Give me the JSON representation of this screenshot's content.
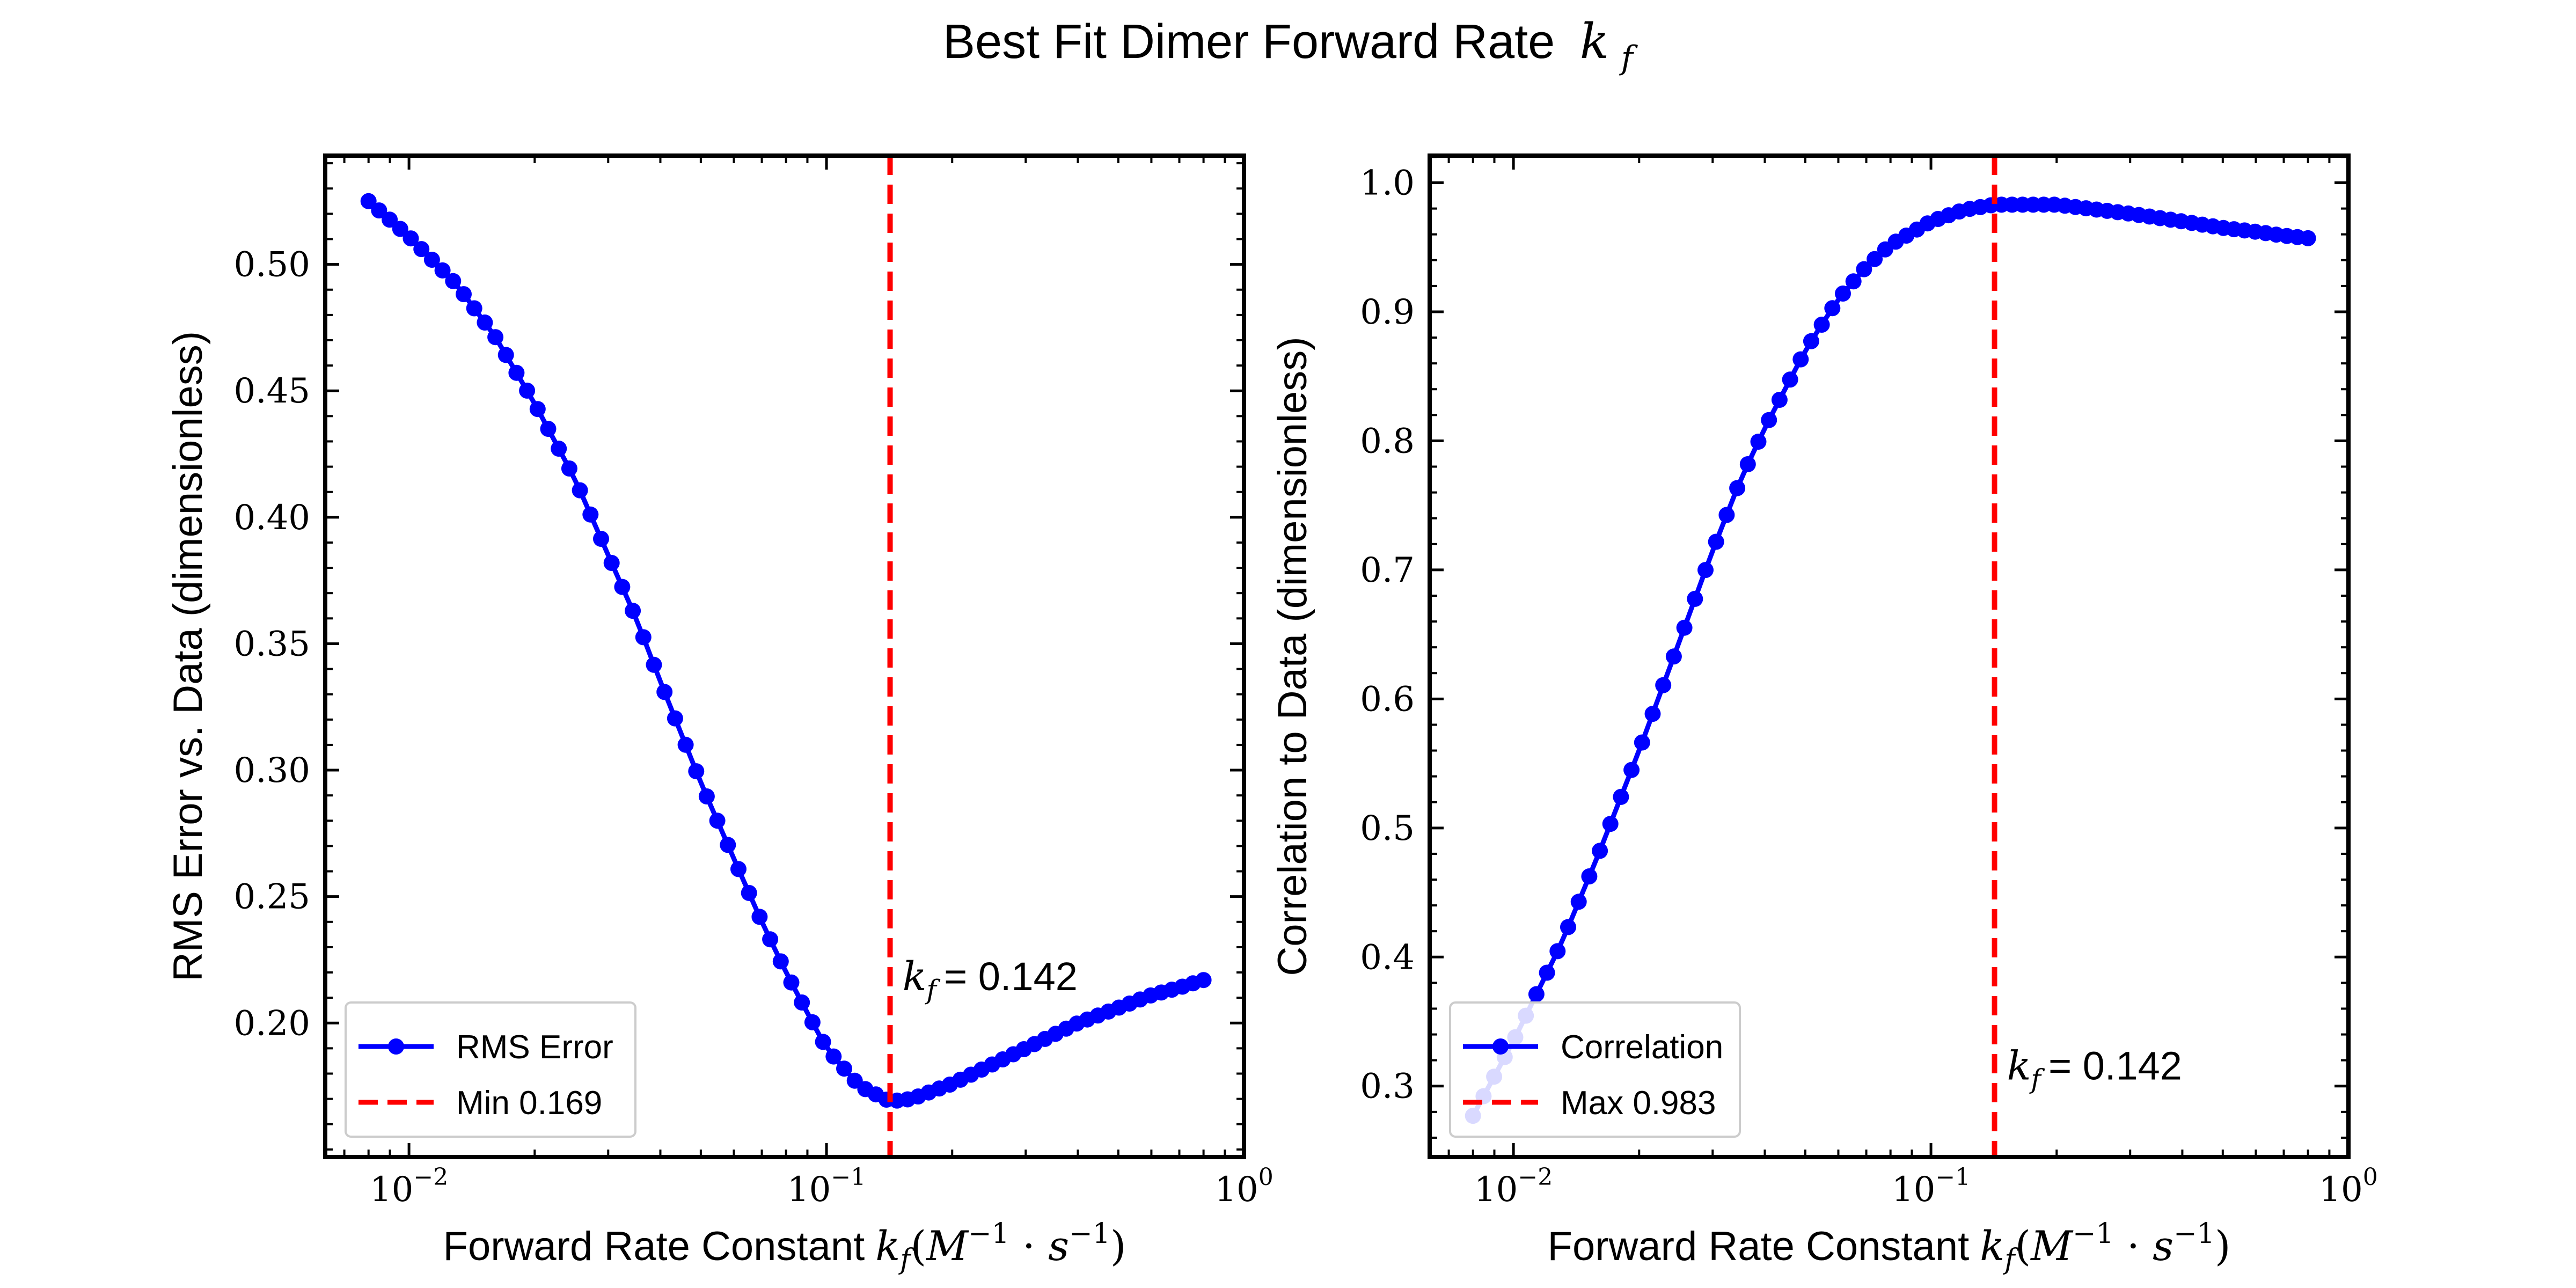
{
  "title": {
    "text": "Best Fit Dimer Forward Rate",
    "symbol": "k",
    "subscript": "f"
  },
  "chart_data": [
    {
      "type": "line",
      "xscale": "log",
      "xlim": [
        0.0063,
        1.0
      ],
      "ylim": [
        0.147,
        0.543
      ],
      "xlabel": {
        "text": "Forward Rate Constant",
        "math": "k_f(M^{-1} · s^{-1})"
      },
      "ylabel": "RMS Error vs. Data (dimensionless)",
      "xticks": [
        {
          "value": 0.01,
          "base": "10",
          "exp": "−2"
        },
        {
          "value": 0.1,
          "base": "10",
          "exp": "−1"
        },
        {
          "value": 1.0,
          "base": "10",
          "exp": "0"
        }
      ],
      "yticks": [
        {
          "value": 0.2,
          "label": "0.20"
        },
        {
          "value": 0.25,
          "label": "0.25"
        },
        {
          "value": 0.3,
          "label": "0.30"
        },
        {
          "value": 0.35,
          "label": "0.35"
        },
        {
          "value": 0.4,
          "label": "0.40"
        },
        {
          "value": 0.45,
          "label": "0.45"
        },
        {
          "value": 0.5,
          "label": "0.50"
        }
      ],
      "series": [
        {
          "name": "RMS Error",
          "color": "#0000ff",
          "x_range": [
            0.008,
            0.8
          ],
          "points": 80,
          "key_points": [
            [
              0.008,
              0.525
            ],
            [
              0.01,
              0.511
            ],
            [
              0.013,
              0.492
            ],
            [
              0.016,
              0.472
            ],
            [
              0.02,
              0.445
            ],
            [
              0.025,
              0.415
            ],
            [
              0.03,
              0.385
            ],
            [
              0.035,
              0.36
            ],
            [
              0.04,
              0.335
            ],
            [
              0.05,
              0.295
            ],
            [
              0.06,
              0.265
            ],
            [
              0.07,
              0.24
            ],
            [
              0.08,
              0.22
            ],
            [
              0.09,
              0.204
            ],
            [
              0.1,
              0.19
            ],
            [
              0.12,
              0.175
            ],
            [
              0.142,
              0.169
            ],
            [
              0.16,
              0.17
            ],
            [
              0.2,
              0.176
            ],
            [
              0.3,
              0.19
            ],
            [
              0.4,
              0.2
            ],
            [
              0.5,
              0.206
            ],
            [
              0.6,
              0.211
            ],
            [
              0.7,
              0.214
            ],
            [
              0.8,
              0.217
            ]
          ]
        }
      ],
      "vline": {
        "x": 0.142,
        "color": "#ff0000",
        "legend": "Min 0.169"
      },
      "annotation": {
        "symbol": "k",
        "subscript": "f",
        "text": "= 0.142",
        "x": 0.145,
        "y": 0.213
      },
      "legend": {
        "placement": "lower-left"
      }
    },
    {
      "type": "line",
      "xscale": "log",
      "xlim": [
        0.0063,
        1.0
      ],
      "ylim": [
        0.245,
        1.021
      ],
      "xlabel": {
        "text": "Forward Rate Constant",
        "math": "k_f(M^{-1} · s^{-1})"
      },
      "ylabel": "Correlation to Data (dimensionless)",
      "xticks": [
        {
          "value": 0.01,
          "base": "10",
          "exp": "−2"
        },
        {
          "value": 0.1,
          "base": "10",
          "exp": "−1"
        },
        {
          "value": 1.0,
          "base": "10",
          "exp": "0"
        }
      ],
      "yticks": [
        {
          "value": 0.3,
          "label": "0.3"
        },
        {
          "value": 0.4,
          "label": "0.4"
        },
        {
          "value": 0.5,
          "label": "0.5"
        },
        {
          "value": 0.6,
          "label": "0.6"
        },
        {
          "value": 0.7,
          "label": "0.7"
        },
        {
          "value": 0.8,
          "label": "0.8"
        },
        {
          "value": 0.9,
          "label": "0.9"
        },
        {
          "value": 1.0,
          "label": "1.0"
        }
      ],
      "series": [
        {
          "name": "Correlation",
          "color": "#0000ff",
          "x_range": [
            0.008,
            0.8
          ],
          "points": 80,
          "key_points": [
            [
              0.008,
              0.277
            ],
            [
              0.01,
              0.335
            ],
            [
              0.013,
              0.41
            ],
            [
              0.016,
              0.48
            ],
            [
              0.02,
              0.56
            ],
            [
              0.025,
              0.645
            ],
            [
              0.03,
              0.715
            ],
            [
              0.035,
              0.77
            ],
            [
              0.04,
              0.81
            ],
            [
              0.05,
              0.87
            ],
            [
              0.06,
              0.91
            ],
            [
              0.07,
              0.935
            ],
            [
              0.08,
              0.952
            ],
            [
              0.1,
              0.97
            ],
            [
              0.12,
              0.979
            ],
            [
              0.142,
              0.983
            ],
            [
              0.2,
              0.983
            ],
            [
              0.3,
              0.976
            ],
            [
              0.4,
              0.97
            ],
            [
              0.5,
              0.965
            ],
            [
              0.6,
              0.962
            ],
            [
              0.7,
              0.959
            ],
            [
              0.8,
              0.957
            ]
          ]
        }
      ],
      "vline": {
        "x": 0.142,
        "color": "#ff0000",
        "legend": "Max 0.983"
      },
      "annotation": {
        "symbol": "k",
        "subscript": "f",
        "text": "= 0.142",
        "x": 0.145,
        "y": 0.305
      },
      "legend": {
        "placement": "lower-left"
      }
    }
  ]
}
